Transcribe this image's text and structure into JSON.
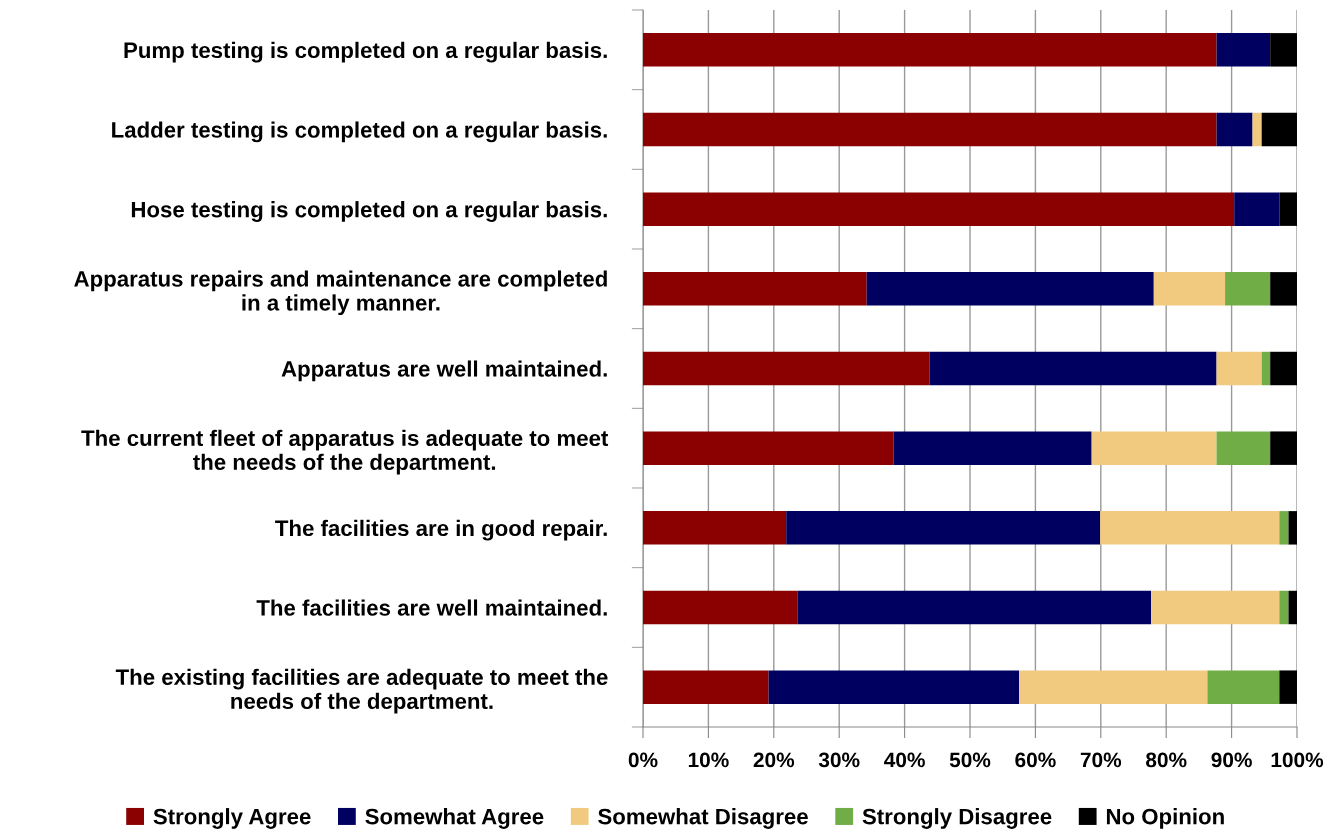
{
  "chart_data": {
    "type": "bar",
    "orientation": "horizontal",
    "stacked": true,
    "categories": [
      "Pump testing is completed on a regular basis.",
      "Ladder testing is completed on a regular basis.",
      "Hose testing is completed on a regular basis.",
      "Apparatus repairs and maintenance are completed\nin a timely manner.",
      "Apparatus are well maintained.",
      "The current fleet of apparatus is adequate to meet\nthe needs of the department.",
      "The facilities are in good repair.",
      "The facilities are well maintained.",
      "The existing facilities are adequate to meet the\nneeds of the department."
    ],
    "series": [
      {
        "name": "Strongly Agree",
        "color": "#8b0000",
        "values": [
          87.7,
          87.7,
          90.4,
          34.2,
          43.8,
          38.3,
          21.9,
          23.6,
          19.2
        ]
      },
      {
        "name": "Somewhat Agree",
        "color": "#000060",
        "values": [
          8.2,
          5.5,
          6.9,
          43.9,
          43.9,
          30.3,
          48.0,
          54.1,
          38.3
        ]
      },
      {
        "name": "Somewhat Disagree",
        "color": "#f1ca7f",
        "values": [
          0,
          1.4,
          0,
          10.9,
          6.9,
          19.1,
          27.4,
          19.6,
          28.8
        ]
      },
      {
        "name": "Strongly Disagree",
        "color": "#70ad47",
        "values": [
          0,
          0,
          0,
          6.9,
          1.3,
          8.2,
          1.4,
          1.4,
          11.0
        ]
      },
      {
        "name": "No Opinion",
        "color": "#000000",
        "values": [
          4.1,
          5.4,
          2.7,
          4.1,
          4.1,
          4.1,
          1.3,
          1.3,
          2.7
        ]
      }
    ],
    "xlim": [
      0,
      100
    ],
    "xticks": [
      {
        "value": 0,
        "label": "0%"
      },
      {
        "value": 10,
        "label": "10%"
      },
      {
        "value": 20,
        "label": "20%"
      },
      {
        "value": 30,
        "label": "30%"
      },
      {
        "value": 40,
        "label": "40%"
      },
      {
        "value": 50,
        "label": "50%"
      },
      {
        "value": 60,
        "label": "60%"
      },
      {
        "value": 70,
        "label": "70%"
      },
      {
        "value": 80,
        "label": "80%"
      },
      {
        "value": 90,
        "label": "90%"
      },
      {
        "value": 100,
        "label": "100%"
      }
    ],
    "grid": "x",
    "legend": "bottom"
  }
}
